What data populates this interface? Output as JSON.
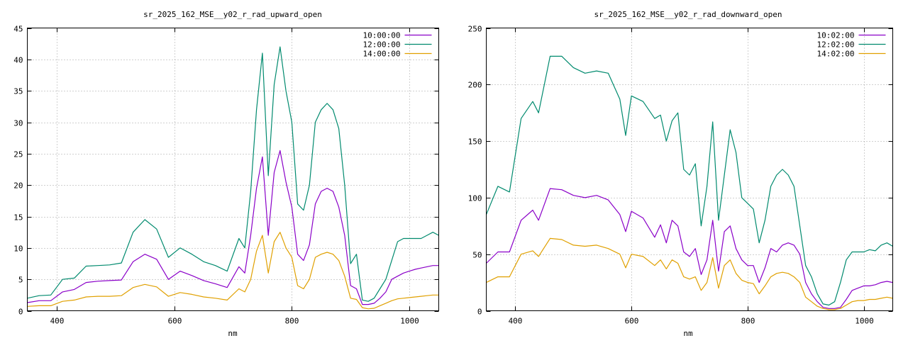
{
  "colors": {
    "series_0": "#8a00c8",
    "series_1": "#008a6e",
    "series_2": "#e0a000"
  },
  "chart_data": [
    {
      "type": "line",
      "title": "sr_2025_162_MSE__y02_r_rad_upward_open",
      "xlabel": "nm",
      "ylabel": "",
      "xlim": [
        350,
        1050
      ],
      "ylim": [
        0,
        45
      ],
      "xticks": [
        400,
        600,
        800,
        1000
      ],
      "yticks": [
        0,
        5,
        10,
        15,
        20,
        25,
        30,
        35,
        40,
        45
      ],
      "grid": true,
      "legend": "top-right",
      "legend_entries": [
        "10:00:00",
        "12:00:00",
        "14:00:00"
      ],
      "x": [
        350,
        370,
        390,
        410,
        430,
        450,
        470,
        490,
        510,
        530,
        550,
        570,
        590,
        610,
        630,
        650,
        670,
        690,
        710,
        720,
        730,
        740,
        750,
        760,
        770,
        780,
        790,
        800,
        810,
        820,
        830,
        840,
        850,
        860,
        870,
        880,
        890,
        900,
        910,
        920,
        930,
        940,
        950,
        960,
        970,
        980,
        990,
        1000,
        1010,
        1020,
        1030,
        1040,
        1050
      ],
      "series": [
        {
          "values": [
            1.3,
            1.6,
            1.6,
            3.0,
            3.4,
            4.5,
            4.7,
            4.8,
            4.9,
            7.8,
            9.0,
            8.2,
            5.0,
            6.3,
            5.6,
            4.8,
            4.3,
            3.7,
            7.0,
            6.0,
            12.0,
            19.5,
            24.5,
            12.0,
            22.0,
            25.5,
            20.5,
            16.5,
            9.0,
            8.0,
            10.5,
            17.0,
            19.0,
            19.5,
            19.0,
            16.5,
            12.0,
            4.0,
            3.5,
            1.0,
            1.0,
            1.2,
            2.0,
            3.0,
            5.0,
            5.5,
            6.0,
            6.3,
            6.6,
            6.8,
            7.0,
            7.2,
            7.2
          ]
        },
        {
          "values": [
            2.0,
            2.4,
            2.5,
            5.0,
            5.2,
            7.1,
            7.2,
            7.3,
            7.6,
            12.5,
            14.5,
            13.0,
            8.5,
            10.0,
            9.0,
            7.8,
            7.2,
            6.3,
            11.5,
            10.0,
            19.0,
            32.0,
            41.0,
            21.5,
            36.0,
            42.0,
            35.0,
            30.0,
            17.0,
            16.0,
            20.0,
            30.0,
            32.0,
            33.0,
            32.0,
            29.0,
            20.0,
            7.5,
            9.0,
            1.7,
            1.5,
            2.0,
            3.5,
            5.0,
            8.0,
            11.0,
            11.5,
            11.5,
            11.5,
            11.5,
            12.0,
            12.5,
            12.0
          ]
        },
        {
          "values": [
            0.7,
            0.8,
            0.8,
            1.5,
            1.7,
            2.2,
            2.3,
            2.3,
            2.4,
            3.7,
            4.2,
            3.8,
            2.3,
            2.9,
            2.6,
            2.2,
            2.0,
            1.7,
            3.5,
            3.0,
            5.0,
            9.5,
            12.0,
            6.0,
            11.0,
            12.5,
            10.0,
            8.5,
            4.0,
            3.5,
            5.0,
            8.5,
            9.0,
            9.3,
            9.0,
            8.0,
            5.5,
            2.0,
            1.8,
            0.5,
            0.3,
            0.4,
            0.8,
            1.2,
            1.6,
            1.9,
            2.0,
            2.1,
            2.2,
            2.3,
            2.4,
            2.5,
            2.5
          ]
        }
      ]
    },
    {
      "type": "line",
      "title": "sr_2025_162_MSE__y02_r_rad_downward_open",
      "xlabel": "nm",
      "ylabel": "",
      "xlim": [
        350,
        1050
      ],
      "ylim": [
        0,
        250
      ],
      "xticks": [
        400,
        600,
        800,
        1000
      ],
      "yticks": [
        0,
        50,
        100,
        150,
        200,
        250
      ],
      "grid": true,
      "legend": "top-right",
      "legend_entries": [
        "10:02:00",
        "12:02:00",
        "14:02:00"
      ],
      "x": [
        350,
        370,
        390,
        410,
        430,
        440,
        460,
        480,
        500,
        520,
        540,
        560,
        580,
        590,
        600,
        620,
        640,
        650,
        660,
        670,
        680,
        690,
        700,
        710,
        720,
        730,
        740,
        750,
        760,
        770,
        780,
        790,
        800,
        810,
        820,
        830,
        840,
        850,
        860,
        870,
        880,
        890,
        900,
        910,
        920,
        930,
        940,
        950,
        960,
        970,
        980,
        990,
        1000,
        1010,
        1020,
        1030,
        1040,
        1050
      ],
      "series": [
        {
          "values": [
            42,
            52,
            52,
            80,
            89,
            80,
            108,
            107,
            102,
            100,
            102,
            98,
            85,
            70,
            88,
            82,
            65,
            76,
            60,
            80,
            75,
            52,
            48,
            55,
            32,
            45,
            80,
            35,
            70,
            75,
            55,
            45,
            40,
            40,
            25,
            38,
            55,
            52,
            58,
            60,
            58,
            50,
            25,
            15,
            8,
            3,
            2,
            2,
            3,
            10,
            18,
            20,
            22,
            22,
            23,
            25,
            26,
            25
          ]
        },
        {
          "values": [
            85,
            110,
            105,
            170,
            185,
            175,
            225,
            225,
            215,
            210,
            212,
            210,
            187,
            155,
            190,
            185,
            170,
            173,
            150,
            168,
            175,
            125,
            120,
            130,
            75,
            110,
            167,
            80,
            120,
            160,
            140,
            100,
            95,
            90,
            60,
            80,
            110,
            120,
            125,
            120,
            110,
            75,
            40,
            30,
            15,
            6,
            5,
            8,
            25,
            45,
            52,
            52,
            52,
            54,
            53,
            58,
            60,
            57
          ]
        },
        {
          "values": [
            25,
            30,
            30,
            50,
            53,
            48,
            64,
            63,
            58,
            57,
            58,
            55,
            50,
            38,
            50,
            48,
            40,
            45,
            37,
            45,
            42,
            30,
            28,
            30,
            18,
            25,
            47,
            20,
            40,
            45,
            33,
            27,
            25,
            24,
            15,
            22,
            30,
            33,
            34,
            33,
            30,
            25,
            12,
            8,
            4,
            2,
            1,
            1,
            2,
            5,
            8,
            9,
            9,
            10,
            10,
            11,
            12,
            11
          ]
        }
      ]
    }
  ]
}
